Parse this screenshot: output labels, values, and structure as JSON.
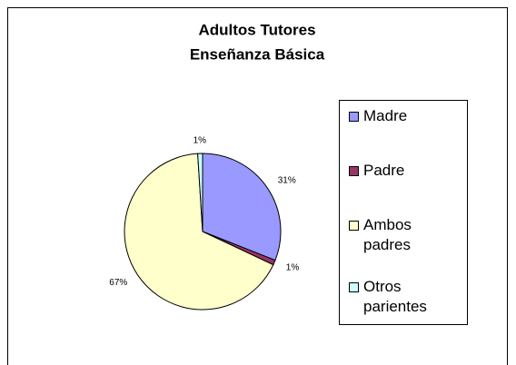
{
  "chart_data": {
    "type": "pie",
    "title": "Adultos Tutores",
    "subtitle": "Enseñanza Básica",
    "categories": [
      "Madre",
      "Padre",
      "Ambos padres",
      "Otros parientes"
    ],
    "values": [
      31,
      1,
      67,
      1
    ],
    "value_labels": [
      "31%",
      "1%",
      "67%",
      "1%"
    ],
    "colors": [
      "#9999ff",
      "#993366",
      "#ffffcc",
      "#ccffff"
    ],
    "legend": "right"
  }
}
